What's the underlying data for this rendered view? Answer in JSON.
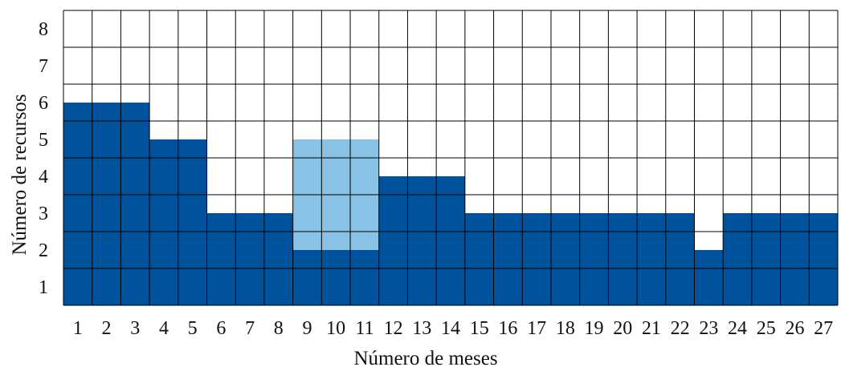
{
  "chart_data": {
    "type": "bar",
    "xlabel": "Número de meses",
    "ylabel": "Número de recursos",
    "ylim": [
      0,
      8
    ],
    "grid": true,
    "categories": [
      1,
      2,
      3,
      4,
      5,
      6,
      7,
      8,
      9,
      10,
      11,
      12,
      13,
      14,
      15,
      16,
      17,
      18,
      19,
      20,
      21,
      22,
      23,
      24,
      25,
      26,
      27
    ],
    "y_ticks": [
      1,
      2,
      3,
      4,
      5,
      6,
      7,
      8
    ],
    "series": [
      {
        "color": "#00529c",
        "values": [
          5.5,
          5.5,
          5.5,
          4.5,
          4.5,
          2.5,
          2.5,
          2.5,
          1.5,
          1.5,
          1.5,
          3.5,
          3.5,
          3.5,
          2.5,
          2.5,
          2.5,
          2.5,
          2.5,
          2.5,
          2.5,
          2.5,
          1.5,
          2.5,
          2.5,
          2.5,
          2.5
        ]
      },
      {
        "color": "#8ac2e6",
        "values": [
          0,
          0,
          0,
          0,
          0,
          0,
          0,
          0,
          3,
          3,
          3,
          0,
          0,
          0,
          0,
          0,
          0,
          0,
          0,
          0,
          0,
          0,
          0,
          0,
          0,
          0,
          0
        ]
      }
    ]
  }
}
